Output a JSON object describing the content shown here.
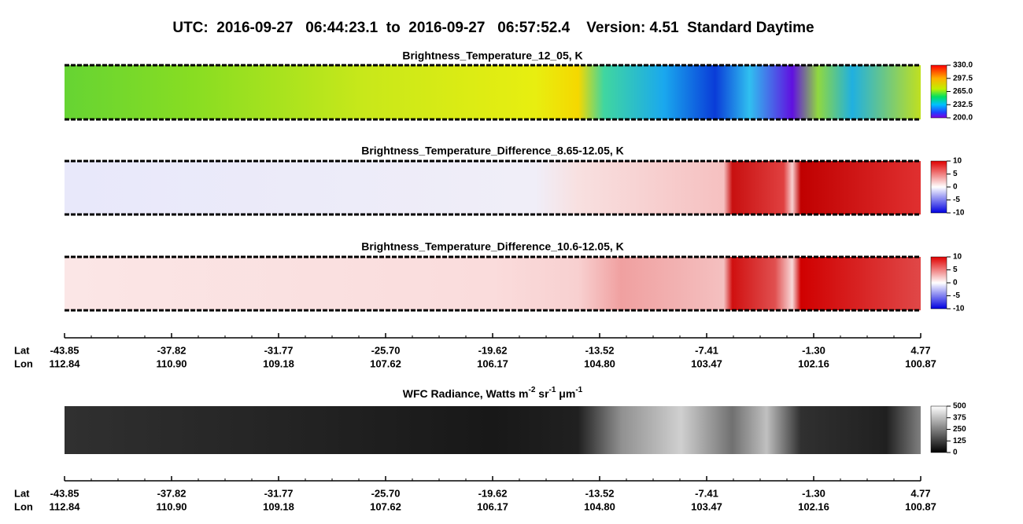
{
  "title": "UTC:  2016-09-27   06:44:23.1  to  2016-09-27   06:57:52.4    Version: 4.51  Standard Daytime",
  "panels": [
    {
      "title": "Brightness_Temperature_12_05, K",
      "colorbar": [
        "330.0",
        "297.5",
        "265.0",
        "232.5",
        "200.0"
      ]
    },
    {
      "title": "Brightness_Temperature_Difference_8.65-12.05, K",
      "colorbar": [
        "10",
        "5",
        "0",
        "-5",
        "-10"
      ]
    },
    {
      "title": "Brightness_Temperature_Difference_10.6-12.05, K",
      "colorbar": [
        "10",
        "5",
        "0",
        "-5",
        "-10"
      ]
    },
    {
      "title_parts": [
        "WFC Radiance, Watts m",
        "-2",
        " sr",
        "-1",
        " μm",
        "-1"
      ],
      "colorbar": [
        "500",
        "375",
        "250",
        "125",
        "0"
      ]
    }
  ],
  "axis": {
    "lat_label": "Lat",
    "lon_label": "Lon",
    "lat": [
      "-43.85",
      "-37.82",
      "-31.77",
      "-25.70",
      "-19.62",
      "-13.52",
      "-7.41",
      "-1.30",
      "4.77"
    ],
    "lon": [
      "112.84",
      "110.90",
      "109.18",
      "107.62",
      "106.17",
      "104.80",
      "103.47",
      "102.16",
      "100.87"
    ]
  }
}
